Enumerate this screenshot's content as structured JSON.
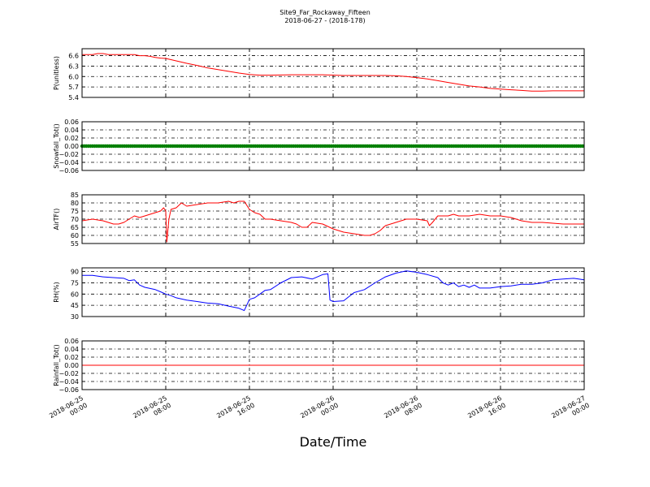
{
  "chart_data": {
    "type": "line",
    "title": "Site9_Far_Rockaway_Fifteen",
    "subtitle": "2018-06-27 - (2018-178)",
    "xlabel": "Date/Time",
    "x_ticks": [
      {
        "t": 0,
        "line1": "2018-06-25",
        "line2": "00:00"
      },
      {
        "t": 8,
        "line1": "2018-06-25",
        "line2": "08:00"
      },
      {
        "t": 16,
        "line1": "2018-06-25",
        "line2": "16:00"
      },
      {
        "t": 24,
        "line1": "2018-06-26",
        "line2": "00:00"
      },
      {
        "t": 32,
        "line1": "2018-06-26",
        "line2": "08:00"
      },
      {
        "t": 40,
        "line1": "2018-06-26",
        "line2": "16:00"
      },
      {
        "t": 48,
        "line1": "2018-06-27",
        "line2": "00:00"
      }
    ],
    "xlim": [
      0,
      48
    ],
    "grid": true,
    "panels": [
      {
        "ylabel": "P(unitless)",
        "ylim": [
          5.4,
          6.8
        ],
        "yticks": [
          5.4,
          5.7,
          6.0,
          6.3,
          6.6
        ],
        "ytick_labels": [
          "5.4",
          "5.7",
          "6.0",
          "6.3",
          "6.6"
        ],
        "color": "#ff0000",
        "dots": false,
        "series": [
          [
            0,
            6.63
          ],
          [
            1,
            6.63
          ],
          [
            1.5,
            6.66
          ],
          [
            2,
            6.66
          ],
          [
            2.5,
            6.63
          ],
          [
            5,
            6.63
          ],
          [
            5.5,
            6.6
          ],
          [
            6,
            6.6
          ],
          [
            6.5,
            6.58
          ],
          [
            7,
            6.55
          ],
          [
            7.5,
            6.53
          ],
          [
            8,
            6.52
          ],
          [
            9,
            6.45
          ],
          [
            10,
            6.38
          ],
          [
            11,
            6.32
          ],
          [
            12,
            6.25
          ],
          [
            13,
            6.2
          ],
          [
            14,
            6.15
          ],
          [
            15,
            6.1
          ],
          [
            16,
            6.06
          ],
          [
            17,
            6.04
          ],
          [
            18,
            6.04
          ],
          [
            20,
            6.05
          ],
          [
            23,
            6.05
          ],
          [
            25,
            6.03
          ],
          [
            29,
            6.03
          ],
          [
            30,
            6.02
          ],
          [
            31,
            6.0
          ],
          [
            32,
            5.97
          ],
          [
            33,
            5.93
          ],
          [
            34,
            5.88
          ],
          [
            35,
            5.83
          ],
          [
            36,
            5.78
          ],
          [
            37,
            5.73
          ],
          [
            38,
            5.7
          ],
          [
            39,
            5.66
          ],
          [
            40,
            5.64
          ],
          [
            41,
            5.62
          ],
          [
            42,
            5.6
          ],
          [
            43,
            5.58
          ],
          [
            44,
            5.58
          ],
          [
            45,
            5.59
          ],
          [
            48,
            5.59
          ]
        ]
      },
      {
        "ylabel": "Snowfall_Tot()",
        "ylim": [
          -0.06,
          0.06
        ],
        "yticks": [
          -0.06,
          -0.04,
          -0.02,
          0.0,
          0.02,
          0.04,
          0.06
        ],
        "ytick_labels": [
          "−0.06",
          "−0.04",
          "−0.02",
          "0.00",
          "0.02",
          "0.04",
          "0.06"
        ],
        "color": "#008000",
        "dots": true,
        "series": [
          [
            0,
            0
          ],
          [
            48,
            0
          ]
        ]
      },
      {
        "ylabel": "AirTF()",
        "ylim": [
          55,
          85
        ],
        "yticks": [
          55,
          60,
          65,
          70,
          75,
          80,
          85
        ],
        "ytick_labels": [
          "55",
          "60",
          "65",
          "70",
          "75",
          "80",
          "85"
        ],
        "color": "#ff0000",
        "dots": false,
        "series": [
          [
            0,
            69
          ],
          [
            1,
            70
          ],
          [
            2,
            69
          ],
          [
            2.5,
            68
          ],
          [
            3,
            67
          ],
          [
            3.5,
            67
          ],
          [
            4,
            68
          ],
          [
            4.5,
            70
          ],
          [
            5,
            72
          ],
          [
            5.5,
            71
          ],
          [
            6,
            72
          ],
          [
            6.5,
            73
          ],
          [
            7,
            74
          ],
          [
            7.5,
            75
          ],
          [
            7.8,
            77
          ],
          [
            8,
            75
          ],
          [
            8.1,
            56
          ],
          [
            8.3,
            70
          ],
          [
            8.5,
            76
          ],
          [
            9,
            77
          ],
          [
            9.5,
            80
          ],
          [
            10,
            78
          ],
          [
            11,
            79
          ],
          [
            12,
            80
          ],
          [
            13,
            80
          ],
          [
            14,
            81
          ],
          [
            14.5,
            80
          ],
          [
            15,
            81
          ],
          [
            15.5,
            81
          ],
          [
            16,
            76
          ],
          [
            16.5,
            74
          ],
          [
            17,
            73
          ],
          [
            17.5,
            70
          ],
          [
            18,
            70
          ],
          [
            19,
            69
          ],
          [
            20,
            68
          ],
          [
            20.5,
            67
          ],
          [
            21,
            65
          ],
          [
            21.5,
            65
          ],
          [
            22,
            68
          ],
          [
            23,
            67
          ],
          [
            24,
            64
          ],
          [
            25,
            62
          ],
          [
            26,
            61
          ],
          [
            27,
            60
          ],
          [
            27.5,
            60
          ],
          [
            28,
            61
          ],
          [
            28.5,
            63
          ],
          [
            29,
            66
          ],
          [
            30,
            68
          ],
          [
            31,
            70
          ],
          [
            32,
            70
          ],
          [
            33,
            69
          ],
          [
            33.2,
            66
          ],
          [
            33.5,
            68
          ],
          [
            34,
            72
          ],
          [
            35,
            72
          ],
          [
            35.5,
            73
          ],
          [
            36,
            72
          ],
          [
            37,
            72
          ],
          [
            38,
            73
          ],
          [
            39,
            72
          ],
          [
            40,
            72
          ],
          [
            41,
            71
          ],
          [
            42,
            69
          ],
          [
            43,
            68
          ],
          [
            44,
            68
          ],
          [
            46,
            67
          ],
          [
            48,
            67
          ]
        ]
      },
      {
        "ylabel": "RH(%)",
        "ylim": [
          30,
          95
        ],
        "yticks": [
          30,
          45,
          60,
          75,
          90
        ],
        "ytick_labels": [
          "30",
          "45",
          "60",
          "75",
          "90"
        ],
        "color": "#0000ff",
        "dots": false,
        "series": [
          [
            0,
            85
          ],
          [
            1,
            85
          ],
          [
            2,
            83
          ],
          [
            3,
            82
          ],
          [
            4,
            81
          ],
          [
            4.5,
            78
          ],
          [
            5,
            79
          ],
          [
            5.5,
            72
          ],
          [
            6,
            69
          ],
          [
            7,
            66
          ],
          [
            7.5,
            63
          ],
          [
            8,
            60
          ],
          [
            8.5,
            58
          ],
          [
            9,
            55
          ],
          [
            10,
            52
          ],
          [
            11,
            50
          ],
          [
            12,
            48
          ],
          [
            13,
            47
          ],
          [
            14,
            44
          ],
          [
            15,
            41
          ],
          [
            15.5,
            38
          ],
          [
            16,
            53
          ],
          [
            16.5,
            55
          ],
          [
            17,
            60
          ],
          [
            17.5,
            65
          ],
          [
            18,
            66
          ],
          [
            19,
            75
          ],
          [
            20,
            82
          ],
          [
            21,
            83
          ],
          [
            22,
            80
          ],
          [
            23,
            86
          ],
          [
            23.5,
            87
          ],
          [
            23.7,
            52
          ],
          [
            24,
            50
          ],
          [
            25,
            51
          ],
          [
            26,
            62
          ],
          [
            27,
            66
          ],
          [
            28,
            75
          ],
          [
            29,
            83
          ],
          [
            30,
            88
          ],
          [
            31,
            91
          ],
          [
            32,
            89
          ],
          [
            33,
            86
          ],
          [
            34,
            82
          ],
          [
            34.5,
            75
          ],
          [
            35,
            72
          ],
          [
            35.5,
            75
          ],
          [
            36,
            70
          ],
          [
            36.5,
            72
          ],
          [
            37,
            69
          ],
          [
            37.5,
            72
          ],
          [
            38,
            68
          ],
          [
            39,
            68
          ],
          [
            40,
            70
          ],
          [
            41,
            71
          ],
          [
            42,
            73
          ],
          [
            43,
            73
          ],
          [
            44,
            75
          ],
          [
            45,
            79
          ],
          [
            46,
            80
          ],
          [
            47,
            81
          ],
          [
            48,
            79
          ]
        ]
      },
      {
        "ylabel": "Rainfall_Tot()",
        "ylim": [
          -0.06,
          0.06
        ],
        "yticks": [
          -0.06,
          -0.04,
          -0.02,
          0.0,
          0.02,
          0.04,
          0.06
        ],
        "ytick_labels": [
          "−0.06",
          "−0.04",
          "−0.02",
          "0.00",
          "0.02",
          "0.04",
          "0.06"
        ],
        "color": "#ff0000",
        "dots": false,
        "series": [
          [
            0,
            0
          ],
          [
            48,
            0
          ]
        ]
      }
    ]
  }
}
